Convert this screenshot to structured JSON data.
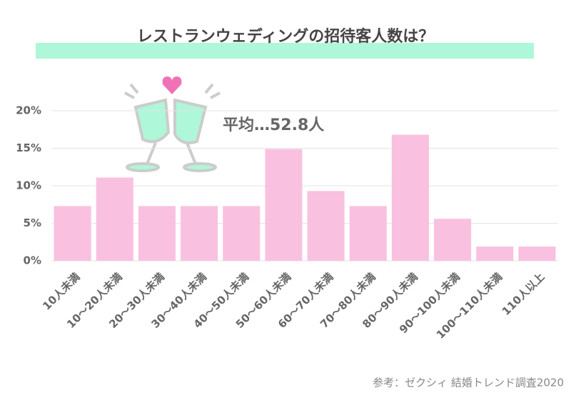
{
  "chart_data": {
    "type": "bar",
    "title": "レストランウェディングの招待客人数は？",
    "annotation": "平均…52.8人",
    "source": "参考：ゼクシィ 結婚トレンド調査2020",
    "categories": [
      "10人未満",
      "10〜20人未満",
      "20〜30人未満",
      "30〜40人未満",
      "40〜50人未満",
      "50〜60人未満",
      "60〜70人未満",
      "70〜80人未満",
      "80〜90人未満",
      "90〜100人未満",
      "100〜110人未満",
      "110人以上"
    ],
    "values": [
      7.3,
      11.1,
      7.3,
      7.3,
      7.3,
      14.9,
      9.3,
      7.3,
      16.8,
      5.6,
      1.9,
      1.9
    ],
    "color": "#f9c1df",
    "ylim": [
      0,
      20
    ],
    "yticks": [
      {
        "value": 0,
        "label": "0%"
      },
      {
        "value": 5,
        "label": "5%"
      },
      {
        "value": 10,
        "label": "10%"
      },
      {
        "value": 15,
        "label": "15%"
      },
      {
        "value": 20,
        "label": "20%"
      }
    ],
    "grid": true
  }
}
